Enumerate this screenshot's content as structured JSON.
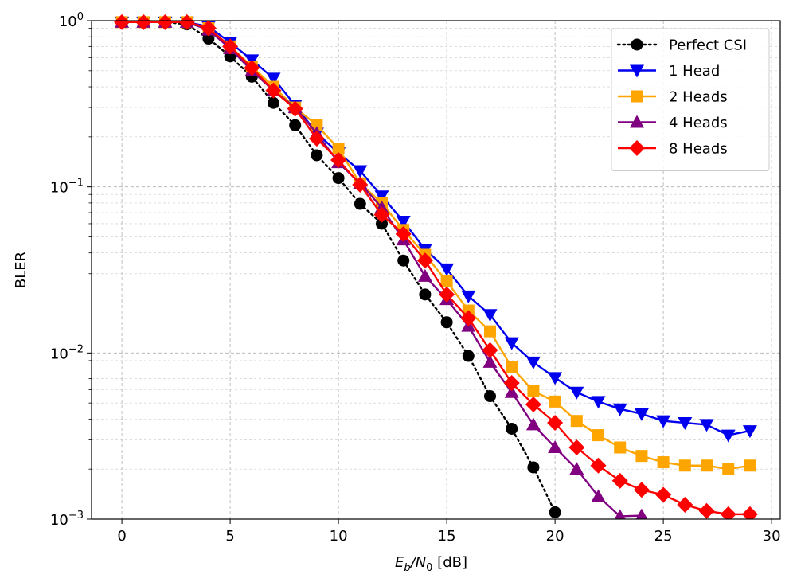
{
  "chart_data": {
    "type": "line",
    "title": "",
    "xlabel_parts": [
      "E",
      "b",
      "/N",
      "0",
      " [dB]"
    ],
    "ylabel": "BLER",
    "xlim": [
      -1.4,
      30.4
    ],
    "ylim": [
      0.001,
      1.0
    ],
    "yscale": "log",
    "x_ticks": [
      0,
      5,
      10,
      15,
      20,
      25,
      30
    ],
    "y_ticks": [
      {
        "value": 1.0,
        "base": "10",
        "exp": "0"
      },
      {
        "value": 0.1,
        "base": "10",
        "exp": "−1"
      },
      {
        "value": 0.01,
        "base": "10",
        "exp": "−2"
      },
      {
        "value": 0.001,
        "base": "10",
        "exp": "−3"
      }
    ],
    "grid": true,
    "legend_position": "top-right",
    "series": [
      {
        "name": "Perfect CSI",
        "color": "#000000",
        "line_style": "dotted",
        "marker": "circle",
        "x": [
          0,
          1,
          2,
          3,
          4,
          5,
          6,
          7,
          8,
          9,
          10,
          11,
          12,
          13,
          14,
          15,
          16,
          17,
          18,
          19,
          20
        ],
        "y": [
          0.98,
          0.98,
          0.98,
          0.95,
          0.78,
          0.61,
          0.46,
          0.32,
          0.235,
          0.155,
          0.113,
          0.079,
          0.06,
          0.036,
          0.0225,
          0.0153,
          0.0096,
          0.0055,
          0.0035,
          0.00205,
          0.0011
        ]
      },
      {
        "name": "1 Head",
        "color": "#0000ee",
        "line_style": "solid",
        "marker": "triangle-down",
        "x": [
          0,
          1,
          2,
          3,
          4,
          5,
          6,
          7,
          8,
          9,
          10,
          11,
          12,
          13,
          14,
          15,
          16,
          17,
          18,
          19,
          20,
          21,
          22,
          23,
          24,
          25,
          26,
          27,
          28,
          29
        ],
        "y": [
          0.98,
          0.98,
          0.98,
          0.98,
          0.92,
          0.74,
          0.58,
          0.45,
          0.31,
          0.21,
          0.16,
          0.125,
          0.088,
          0.062,
          0.042,
          0.032,
          0.022,
          0.017,
          0.0115,
          0.0088,
          0.0071,
          0.0058,
          0.0051,
          0.0046,
          0.0043,
          0.0039,
          0.0038,
          0.0037,
          0.0032,
          0.0034
        ]
      },
      {
        "name": "2 Heads",
        "color": "#ffa500",
        "line_style": "solid",
        "marker": "square",
        "x": [
          0,
          1,
          2,
          3,
          4,
          5,
          6,
          7,
          8,
          9,
          10,
          11,
          12,
          13,
          14,
          15,
          16,
          17,
          18,
          19,
          20,
          21,
          22,
          23,
          24,
          25,
          26,
          27,
          28,
          29
        ],
        "y": [
          0.98,
          0.98,
          0.98,
          0.98,
          0.9,
          0.7,
          0.53,
          0.4,
          0.3,
          0.235,
          0.17,
          0.105,
          0.08,
          0.055,
          0.039,
          0.027,
          0.018,
          0.0135,
          0.0082,
          0.0059,
          0.0051,
          0.0039,
          0.0032,
          0.0027,
          0.0024,
          0.0022,
          0.0021,
          0.0021,
          0.002,
          0.0021
        ]
      },
      {
        "name": "4 Heads",
        "color": "#800080",
        "line_style": "solid",
        "marker": "triangle-up",
        "x": [
          0,
          1,
          2,
          3,
          4,
          5,
          6,
          7,
          8,
          9,
          10,
          11,
          12,
          13,
          14,
          15,
          16,
          17,
          18,
          19,
          20,
          21,
          22,
          23,
          24
        ],
        "y": [
          0.98,
          0.98,
          0.98,
          0.98,
          0.88,
          0.68,
          0.5,
          0.38,
          0.3,
          0.21,
          0.14,
          0.105,
          0.075,
          0.048,
          0.029,
          0.021,
          0.0145,
          0.0088,
          0.0058,
          0.0037,
          0.0027,
          0.002,
          0.00137,
          0.00104,
          0.00105
        ]
      },
      {
        "name": "8 Heads",
        "color": "#ff0000",
        "line_style": "solid",
        "marker": "diamond",
        "x": [
          0,
          1,
          2,
          3,
          4,
          5,
          6,
          7,
          8,
          9,
          10,
          11,
          12,
          13,
          14,
          15,
          16,
          17,
          18,
          19,
          20,
          21,
          22,
          23,
          24,
          25,
          26,
          27,
          28,
          29
        ],
        "y": [
          0.98,
          0.98,
          0.98,
          0.98,
          0.9,
          0.7,
          0.52,
          0.38,
          0.295,
          0.195,
          0.145,
          0.103,
          0.068,
          0.052,
          0.036,
          0.0225,
          0.0162,
          0.0104,
          0.0066,
          0.0049,
          0.0038,
          0.0027,
          0.0021,
          0.0017,
          0.0015,
          0.0014,
          0.00122,
          0.00112,
          0.00107,
          0.00107
        ]
      }
    ]
  }
}
